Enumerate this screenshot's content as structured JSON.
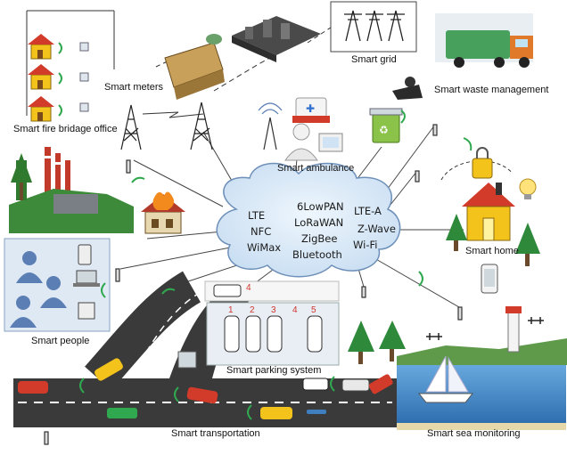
{
  "labels": {
    "smart_meters": "Smart meters",
    "smart_fire_bridage_office": "Smart fire bridage office",
    "smart_grid": "Smart grid",
    "smart_waste_management": "Smart waste management",
    "smart_ambulance": "Smart ambulance",
    "smart_home": "Smart home",
    "smart_people": "Smart people",
    "smart_parking_system": "Smart parking system",
    "smart_transportation": "Smart transportation",
    "smart_sea_monitoring": "Smart sea monitoring"
  },
  "cloud": {
    "protocols": [
      "LTE",
      "NFC",
      "WiMax",
      "6LowPAN",
      "LoRaWAN",
      "ZigBee",
      "Bluetooth",
      "LTE-A",
      "Z-Wave",
      "Wi-Fi"
    ]
  },
  "parking": {
    "slots": [
      "1",
      "2",
      "3",
      "4",
      "5"
    ],
    "lane_number": "4"
  },
  "colors": {
    "cloud_fill": "#dcebf8",
    "cloud_stroke": "#6d8fb8",
    "road": "#3a3a3a",
    "signal_green": "#2fa84f",
    "house_yellow": "#f3c21b",
    "roof_red": "#d23a2a",
    "people_blue": "#5b7fb4",
    "sea_blue": "#3f7fc0"
  }
}
